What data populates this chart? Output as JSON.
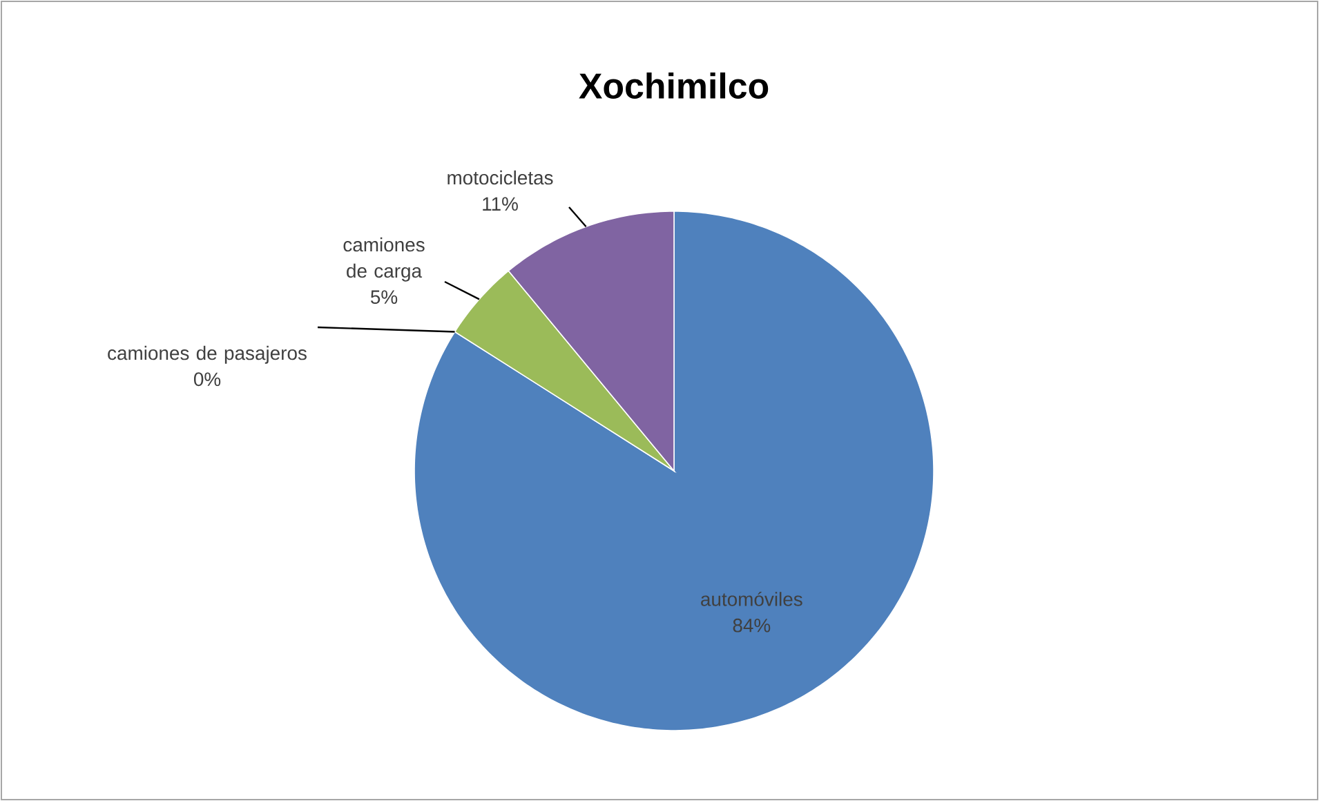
{
  "chart_data": {
    "type": "pie",
    "title": "Xochimilco",
    "categories": [
      "automóviles",
      "camiones de pasajeros",
      "camiones de carga",
      "motocicletas"
    ],
    "values": [
      84,
      0,
      5,
      11
    ],
    "value_labels": [
      "84%",
      "0%",
      "5%",
      "11%"
    ],
    "colors": [
      "#4f81bd",
      "#c0504d",
      "#9bbb59",
      "#8064a2"
    ]
  }
}
